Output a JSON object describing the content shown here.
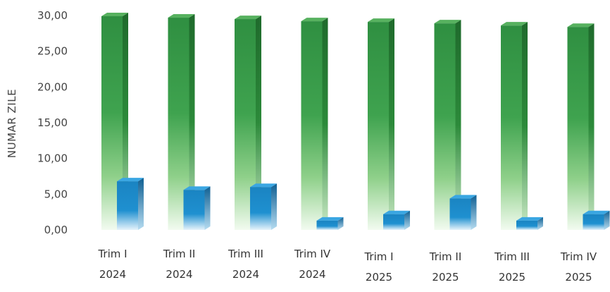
{
  "chart_data": {
    "type": "bar",
    "ylabel": "NUMAR ZILE",
    "ylim": [
      0,
      30
    ],
    "yticks": [
      "0,00",
      "5,00",
      "10,00",
      "15,00",
      "20,00",
      "25,00",
      "30,00"
    ],
    "categories": [
      [
        "Trim I",
        "2024"
      ],
      [
        "Trim II",
        "2024"
      ],
      [
        "Trim III",
        "2024"
      ],
      [
        "Trim IV",
        "2024"
      ],
      [
        "Trim I",
        "2025"
      ],
      [
        "Trim II",
        "2025"
      ],
      [
        "Trim III",
        "2025"
      ],
      [
        "Trim IV",
        "2025"
      ]
    ],
    "series": [
      {
        "values": [
          29.9,
          29.7,
          29.5,
          29.2,
          29.1,
          28.9,
          28.6,
          28.4
        ],
        "color": "#2e8b3e"
      },
      {
        "values": [
          6.8,
          5.6,
          6.0,
          1.3,
          2.2,
          4.4,
          1.3,
          2.2
        ],
        "color": "#1a8ac8"
      }
    ],
    "grid": false,
    "legend": "none"
  }
}
